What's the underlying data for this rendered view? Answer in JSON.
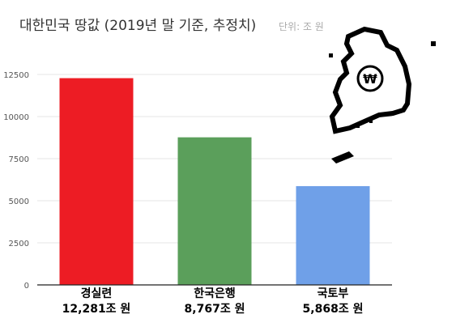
{
  "title": "대한민국 땅값 (2019년 말 기준, 추정치)",
  "unit_note": "단위: 조 원",
  "colors": {
    "title": "#333333",
    "unit_note": "#aaaaaa",
    "tick": "#555555",
    "grid": "#e4e4e4",
    "axis": "#222222",
    "map_outline": "#000000",
    "map_fill": "#ffffff"
  },
  "map_symbol": "₩",
  "chart_data": {
    "type": "bar",
    "categories": [
      "경실련",
      "한국은행",
      "국토부"
    ],
    "value_labels": [
      "12,281조 원",
      "8,767조 원",
      "5,868조 원"
    ],
    "values": [
      12281,
      8767,
      5868
    ],
    "colors": [
      "#ed1c24",
      "#5b9f5b",
      "#6fa0e8"
    ],
    "yticks": [
      0,
      2500,
      5000,
      7500,
      10000,
      12500
    ],
    "ylim": [
      0,
      12500
    ],
    "grid": true,
    "xlabel": "",
    "ylabel": ""
  }
}
